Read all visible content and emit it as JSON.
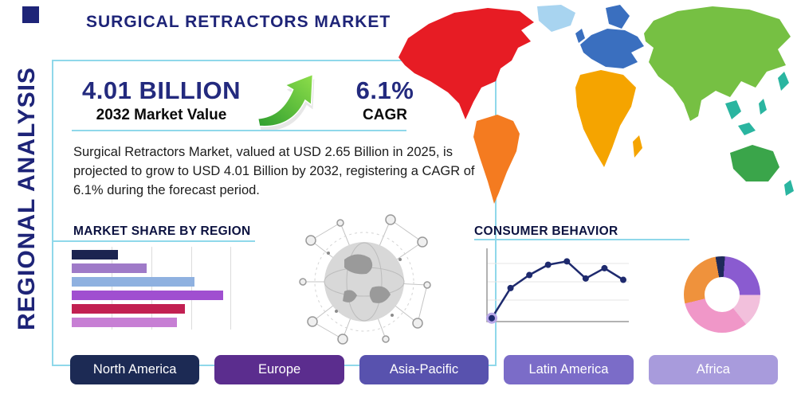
{
  "title": "SURGICAL RETRACTORS MARKET",
  "side_label": "REGIONAL ANALYSIS",
  "stats": {
    "market_value": "4.01 BILLION",
    "market_value_caption": "2032 Market Value",
    "cagr_value": "6.1%",
    "cagr_caption": "CAGR"
  },
  "description": "Surgical Retractors Market, valued at USD 2.65 Billion in 2025, is projected to grow to USD 4.01 Billion by 2032, registering a CAGR of 6.1% during the forecast period.",
  "market_share": {
    "title": "MARKET SHARE BY REGION"
  },
  "consumer_behavior": {
    "title": "CONSUMER BEHAVIOR"
  },
  "region_buttons": [
    {
      "label": "North America",
      "color": "#1c2a54"
    },
    {
      "label": "Europe",
      "color": "#5b2d8e"
    },
    {
      "label": "Asia-Pacific",
      "color": "#5852ae"
    },
    {
      "label": "Latin America",
      "color": "#7b6cc8"
    },
    {
      "label": "Africa",
      "color": "#a89bdc"
    }
  ],
  "accent": {
    "border": "#8fd8ea",
    "navy": "#232a7e",
    "arrow_green_dark": "#2f9e2f",
    "arrow_green_light": "#8ede4a"
  },
  "map": {
    "regions": [
      {
        "name": "north-america",
        "color": "#e71c24"
      },
      {
        "name": "greenland",
        "color": "#a8d4f0"
      },
      {
        "name": "south-america",
        "color": "#f47b20"
      },
      {
        "name": "europe",
        "color": "#3a6fbf"
      },
      {
        "name": "africa",
        "color": "#f5a400"
      },
      {
        "name": "asia",
        "color": "#76c043"
      },
      {
        "name": "southeast-asia",
        "color": "#2ab5a0"
      },
      {
        "name": "australia",
        "color": "#3aa54a"
      }
    ]
  },
  "chart_data": [
    {
      "type": "bar",
      "orientation": "horizontal",
      "title": "MARKET SHARE BY REGION",
      "values": [
        29,
        47,
        77,
        95,
        71,
        66
      ],
      "xlim": [
        0,
        100
      ],
      "grid": true,
      "colors": [
        "#1b2450",
        "#9f7ac8",
        "#8fb1e0",
        "#a04fd0",
        "#c22052",
        "#c77fd4"
      ]
    },
    {
      "type": "line",
      "title": "CONSUMER BEHAVIOR",
      "values": [
        5,
        49,
        68,
        83,
        88,
        63,
        78,
        61
      ],
      "ylim": [
        0,
        100
      ],
      "grid": true,
      "color": "#1e2a6e",
      "start_marker_halo": "#b9a8e8"
    },
    {
      "type": "pie",
      "donut": true,
      "values": [
        4,
        24,
        14,
        32,
        26
      ],
      "colors": [
        "#1e2a5a",
        "#8a5bd0",
        "#f2c0dc",
        "#f097c8",
        "#ef923c"
      ]
    }
  ]
}
